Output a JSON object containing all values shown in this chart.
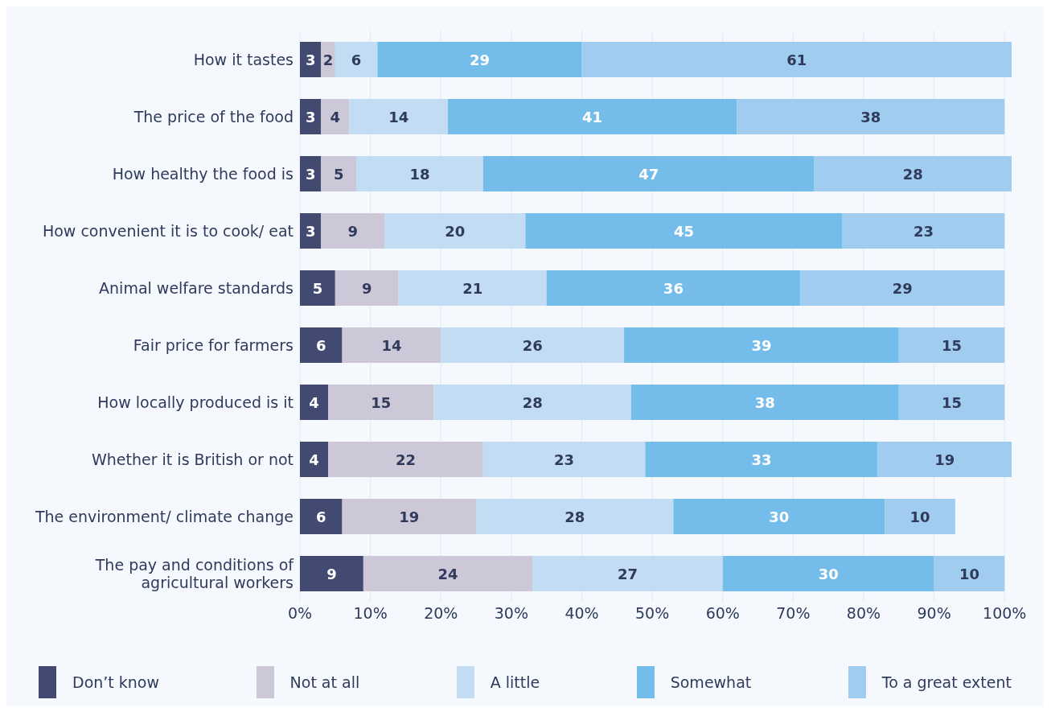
{
  "chart_data": {
    "type": "bar",
    "orientation": "horizontal",
    "stacked": true,
    "categories": [
      "How it tastes",
      "The price of the food",
      "How healthy the food is",
      "How convenient it is to cook/ eat",
      "Animal welfare standards",
      "Fair price for farmers",
      "How locally produced is it",
      "Whether it is British or not",
      "The environment/ climate change",
      "The pay and conditions of agricultural workers"
    ],
    "series": [
      {
        "name": "Don’t know",
        "color": "#434a72",
        "values": [
          3,
          3,
          3,
          3,
          5,
          6,
          4,
          4,
          6,
          9
        ]
      },
      {
        "name": "Not at all",
        "color": "#cdc8d8",
        "values": [
          2,
          4,
          5,
          9,
          9,
          14,
          15,
          22,
          19,
          24
        ]
      },
      {
        "name": "A little",
        "color": "#c2dcf3",
        "values": [
          6,
          14,
          18,
          20,
          21,
          26,
          28,
          23,
          28,
          27
        ]
      },
      {
        "name": "Somewhat",
        "color": "#74bce9",
        "values": [
          29,
          41,
          47,
          45,
          36,
          39,
          38,
          33,
          30,
          30
        ]
      },
      {
        "name": "To a great extent",
        "color": "#a0cdef",
        "values": [
          61,
          38,
          28,
          23,
          29,
          15,
          15,
          19,
          10,
          10
        ]
      }
    ],
    "data_labels": true,
    "xlim": [
      0,
      101
    ],
    "xticks": [
      {
        "value": 0,
        "label": "0%"
      },
      {
        "value": 10,
        "label": "10%"
      },
      {
        "value": 20,
        "label": "20%"
      },
      {
        "value": 30,
        "label": "30%"
      },
      {
        "value": 40,
        "label": "40%"
      },
      {
        "value": 50,
        "label": "50%"
      },
      {
        "value": 60,
        "label": "60%"
      },
      {
        "value": 70,
        "label": "70%"
      },
      {
        "value": 80,
        "label": "80%"
      },
      {
        "value": 90,
        "label": "90%"
      },
      {
        "value": 100,
        "label": "100%"
      }
    ],
    "grid": "x",
    "legend": "bottom"
  }
}
